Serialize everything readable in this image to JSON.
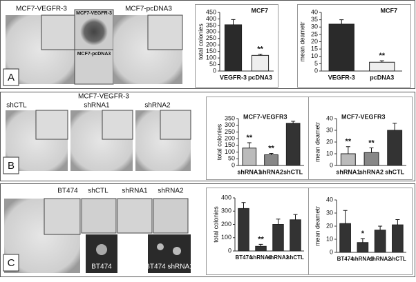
{
  "chart_data": [
    {
      "type": "bar",
      "title": "MCF7",
      "y_label": "total colonies",
      "categories": [
        "VEGFR-3",
        "pcDNA3"
      ],
      "values": [
        355,
        120
      ],
      "errors": [
        40,
        10
      ],
      "colors": [
        "#2a2a2a",
        "#eeeeee"
      ],
      "significance": [
        null,
        "**"
      ],
      "ylim": [
        0,
        450
      ],
      "yticks": [
        0,
        50,
        100,
        150,
        200,
        250,
        300,
        350,
        400,
        450
      ]
    },
    {
      "type": "bar",
      "title": "MCF7",
      "y_label": "mean deametr",
      "categories": [
        "VEGFR-3",
        "pcDNA3"
      ],
      "values": [
        32,
        6
      ],
      "errors": [
        3,
        1
      ],
      "colors": [
        "#2a2a2a",
        "#eeeeee"
      ],
      "significance": [
        null,
        "**"
      ],
      "ylim": [
        0,
        40
      ],
      "yticks": [
        0,
        5,
        10,
        15,
        20,
        25,
        30,
        35,
        40
      ]
    },
    {
      "type": "bar",
      "title": "MCF7-VEGFR3",
      "y_label": "total colonies",
      "categories": [
        "shRNA1",
        "shRNA2",
        "shCTL"
      ],
      "values": [
        130,
        80,
        315
      ],
      "errors": [
        40,
        10,
        15
      ],
      "colors": [
        "#bbbbbb",
        "#888888",
        "#333333"
      ],
      "significance": [
        "**",
        "**",
        null
      ],
      "ylim": [
        0,
        350
      ],
      "yticks": [
        0,
        50,
        100,
        150,
        200,
        250,
        300,
        350
      ]
    },
    {
      "type": "bar",
      "title": "MCF7-VEGFR3",
      "y_label": "mean deametr",
      "categories": [
        "shRNA1",
        "shRNA2",
        "shCTL"
      ],
      "values": [
        10,
        11,
        30
      ],
      "errors": [
        6,
        4,
        6
      ],
      "colors": [
        "#bbbbbb",
        "#888888",
        "#333333"
      ],
      "significance": [
        "**",
        "**",
        null
      ],
      "ylim": [
        0,
        40
      ],
      "yticks": [
        0,
        10,
        20,
        30,
        40
      ]
    },
    {
      "type": "bar",
      "y_label": "total colonies",
      "categories": [
        "BT474",
        "shRNA1",
        "shRNA2",
        "shCTL"
      ],
      "values": [
        320,
        35,
        200,
        235
      ],
      "errors": [
        45,
        15,
        40,
        40
      ],
      "colors": [
        "#333333",
        "#333333",
        "#333333",
        "#333333"
      ],
      "significance": [
        null,
        "**",
        null,
        null
      ],
      "ylim": [
        0,
        400
      ],
      "yticks": [
        0,
        100,
        200,
        300,
        400
      ]
    },
    {
      "type": "bar",
      "y_label": "mean deametr",
      "categories": [
        "BT474",
        "shRNA1",
        "shRNA2",
        "shCTL"
      ],
      "values": [
        22,
        7.5,
        17,
        21
      ],
      "errors": [
        10,
        3,
        3,
        4
      ],
      "colors": [
        "#333333",
        "#333333",
        "#333333",
        "#333333"
      ],
      "significance": [
        null,
        "*",
        null,
        null
      ],
      "ylim": [
        0,
        40
      ],
      "yticks": [
        0,
        10,
        20,
        30,
        40
      ]
    }
  ],
  "panel_labels": [
    "A",
    "B",
    "C"
  ],
  "photo_labels": {
    "a": [
      "MCF7-VEGFR-3",
      "MCF7-VEGFR-3",
      "MCF7-pcDNA3",
      "MCF7-pcDNA3"
    ],
    "b": [
      "MCF7-VEGFR-3",
      "shCTL",
      "shRNA1",
      "shRNA2"
    ],
    "c": [
      "BT474",
      "shCTL",
      "shRNA1",
      "shRNA2",
      "BT474",
      "BT474 shRNA1"
    ]
  }
}
